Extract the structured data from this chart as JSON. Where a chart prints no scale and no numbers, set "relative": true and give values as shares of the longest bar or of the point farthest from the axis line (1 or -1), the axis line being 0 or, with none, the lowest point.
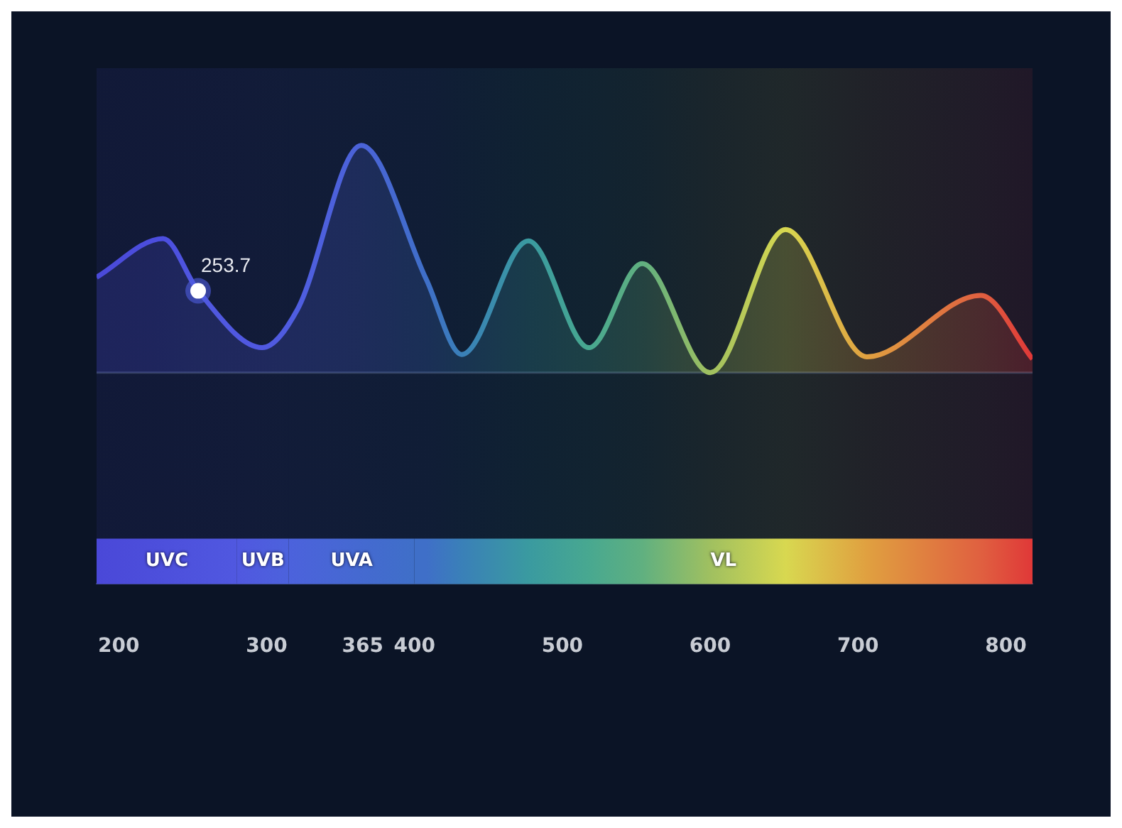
{
  "chart_data": {
    "type": "area",
    "relative": true,
    "x": [
      185,
      230,
      253.7,
      297,
      321,
      364,
      408,
      432,
      477,
      518,
      554,
      600,
      651,
      706,
      783,
      818
    ],
    "series": [
      {
        "color": "#4f5ee0",
        "colors": [
          "#4a4ad8",
          "#4c4ee0",
          "#5058e0",
          "#5058e0",
          "#4f5ee0",
          "#4b63d8",
          "#3f6fc8",
          "#3a80b8",
          "#3a9aa0",
          "#48a890",
          "#60b080",
          "#a0c060",
          "#d8d850",
          "#e0a040",
          "#e06040",
          "#e03838"
        ],
        "values": [
          0.42,
          0.59,
          0.36,
          0.11,
          0.28,
          1.0,
          0.41,
          0.08,
          0.58,
          0.11,
          0.48,
          0,
          0.63,
          0.07,
          0.34,
          0.06
        ]
      }
    ],
    "xlim": [
      185,
      818
    ],
    "xticks": [
      200,
      300,
      365,
      400,
      500,
      600,
      700,
      800
    ],
    "bands": [
      {
        "axis": "x",
        "from": 185,
        "to": 280,
        "label": "UVC",
        "color": "#4a48d8"
      },
      {
        "axis": "x",
        "from": 280,
        "to": 315,
        "label": "UVB",
        "color": "#5058e0"
      },
      {
        "axis": "x",
        "from": 315,
        "to": 400,
        "label": "UVA",
        "color": "#4c62dc"
      },
      {
        "axis": "x",
        "from": 400,
        "to": 818,
        "label": "VL",
        "color": "#3f6fc8"
      }
    ],
    "annotations": [
      {
        "text": "253.7",
        "x": 253.7,
        "y": 0.36
      }
    ],
    "legend": false,
    "marker": "none",
    "line_style": "solid"
  }
}
